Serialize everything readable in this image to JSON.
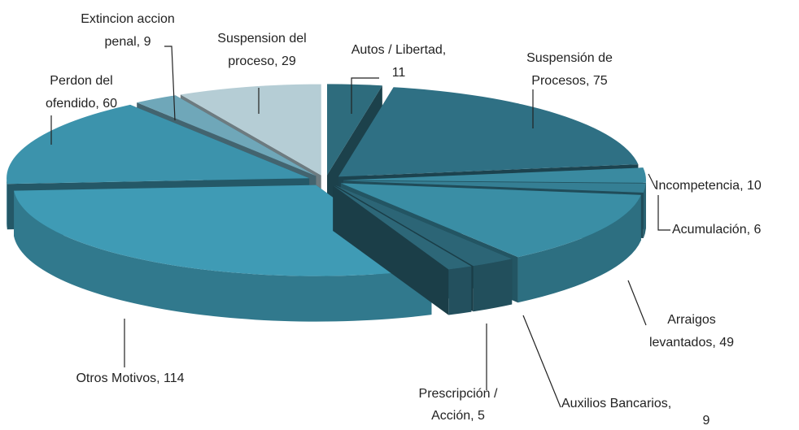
{
  "chart_data": {
    "type": "pie3d",
    "labels": [
      [
        "Autos / Libertad,",
        "11"
      ],
      [
        "Suspensión de",
        "Procesos, 75"
      ],
      [
        "Incompetencia, 10"
      ],
      [
        "Acumulación, 6"
      ],
      [
        "Arraigos",
        "levantados,  49"
      ],
      [
        "Auxilios Bancarios,",
        "9"
      ],
      [
        "Prescripción /",
        "Acción, 5"
      ],
      [
        "Otros Motivos,  114"
      ],
      [
        "Perdon del",
        "ofendido, 60"
      ],
      [
        "Extincion accion",
        "penal, 9"
      ],
      [
        "Suspension del",
        "proceso, 29"
      ]
    ],
    "values": [
      11,
      75,
      10,
      6,
      49,
      9,
      5,
      114,
      60,
      9,
      29
    ],
    "colors": [
      "#2e6c7d",
      "#2f7084",
      "#3a8aa0",
      "#357f94",
      "#3a8ea5",
      "#2c6576",
      "#2d6778",
      "#3f9bb5",
      "#3c93ac",
      "#6fa7b9",
      "#b5cdd5"
    ]
  }
}
